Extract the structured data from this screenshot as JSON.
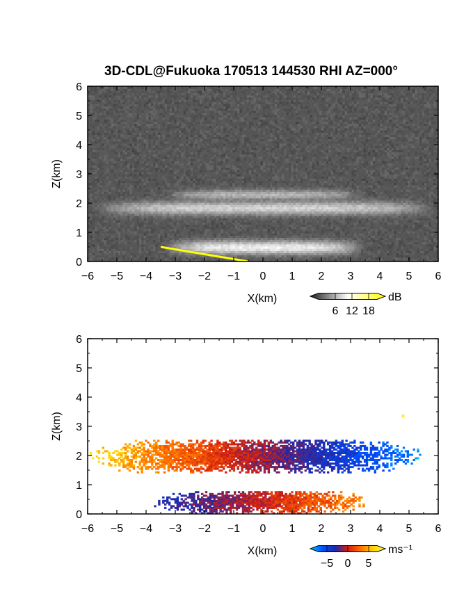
{
  "title": "3D-CDL@Fukuoka 170513 144530 RHI AZ=000°",
  "chart_data": [
    {
      "type": "heatmap",
      "name": "backscatter-intensity",
      "xlabel": "X(km)",
      "ylabel": "Z(km)",
      "xlim": [
        -6,
        6
      ],
      "ylim": [
        0,
        6
      ],
      "xticks": [
        "−6",
        "−5",
        "−4",
        "−3",
        "−2",
        "−1",
        "0",
        "1",
        "2",
        "3",
        "4",
        "5",
        "6"
      ],
      "yticks": [
        "0",
        "1",
        "2",
        "3",
        "4",
        "5",
        "6"
      ],
      "colorbar": {
        "unit": "dB",
        "ticks": [
          "6",
          "12",
          "18"
        ],
        "range": [
          0,
          21
        ],
        "colors": [
          "#1e1e1e",
          "#ffffff",
          "#ffff00"
        ]
      },
      "features": [
        {
          "kind": "layer",
          "x": [
            -6,
            6
          ],
          "z_center": 1.8,
          "z_thickness": 0.5,
          "level_db": 12
        },
        {
          "kind": "layer",
          "x": [
            -3.5,
            3.5
          ],
          "z_center": 2.25,
          "z_thickness": 0.4,
          "level_db": 10
        },
        {
          "kind": "layer",
          "x": [
            -3.5,
            3.5
          ],
          "z_center": 0.45,
          "z_thickness": 0.5,
          "level_db": 14
        },
        {
          "kind": "ground-echo",
          "x": [
            -3.5,
            -0.5
          ],
          "z": [
            0.5,
            0.0
          ],
          "level_db": 20
        }
      ],
      "background_db": 3
    },
    {
      "type": "heatmap",
      "name": "doppler-velocity",
      "xlabel": "X(km)",
      "ylabel": "Z(km)",
      "xlim": [
        -6,
        6
      ],
      "ylim": [
        0,
        6
      ],
      "xticks": [
        "−6",
        "−5",
        "−4",
        "−3",
        "−2",
        "−1",
        "0",
        "1",
        "2",
        "3",
        "4",
        "5",
        "6"
      ],
      "yticks": [
        "0",
        "1",
        "2",
        "3",
        "4",
        "5",
        "6"
      ],
      "colorbar": {
        "unit": "ms⁻¹",
        "ticks": [
          "−5",
          "0",
          "5"
        ],
        "range": [
          -7,
          7
        ],
        "colors": [
          "#00c8ff",
          "#0050ff",
          "#1e28aa",
          "#d21e14",
          "#ff6e00",
          "#ffd200",
          "#ffff50"
        ]
      },
      "features": [
        {
          "kind": "layer",
          "x": [
            -6,
            5.4
          ],
          "z": [
            1.4,
            2.5
          ],
          "velocity_left": 5,
          "velocity_right": -6
        },
        {
          "kind": "layer",
          "x": [
            -3.8,
            3.6
          ],
          "z": [
            0.0,
            0.75
          ],
          "velocity_left": -3,
          "velocity_right": 3
        },
        {
          "kind": "point",
          "x": 4.8,
          "z": 3.35,
          "velocity": 6
        }
      ]
    }
  ]
}
